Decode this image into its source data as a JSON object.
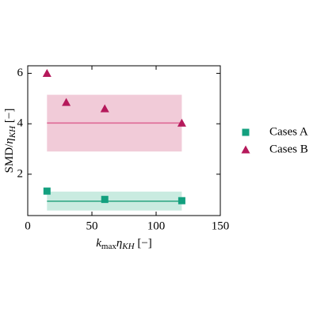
{
  "chart_data": {
    "type": "scatter",
    "xlabel": [
      {
        "t": "k",
        "i": true
      },
      {
        "t": "max",
        "sub": true
      },
      {
        "t": "η",
        "i": true
      },
      {
        "t": "KH",
        "sub": true,
        "i": true
      },
      {
        "t": " [−]"
      }
    ],
    "ylabel": [
      {
        "t": "SMD/"
      },
      {
        "t": "η",
        "i": true
      },
      {
        "t": "KH",
        "sub": true,
        "i": true
      },
      {
        "t": " [−]"
      }
    ],
    "xlim": [
      0,
      150
    ],
    "xticks": [
      0,
      50,
      100,
      150
    ],
    "ylim": [
      0.36,
      6.3
    ],
    "yticks": [
      2,
      4,
      6
    ],
    "legend": "right",
    "series": [
      {
        "name": "Cases A",
        "marker": "square",
        "color": "#13a07f",
        "line_color": "#3fae8e",
        "band_color": "#c9ebe0",
        "x": [
          15,
          60,
          120
        ],
        "values": [
          1.33,
          1.0,
          0.95
        ],
        "mean": 0.93,
        "band": [
          0.56,
          1.31
        ],
        "span": [
          15,
          120
        ]
      },
      {
        "name": "Cases B",
        "marker": "triangle",
        "color": "#b5195b",
        "line_color": "#e0709a",
        "band_color": "#f1cbd8",
        "x": [
          15,
          30,
          60,
          120
        ],
        "values": [
          6.0,
          4.85,
          4.6,
          4.03
        ],
        "mean": 4.03,
        "band": [
          2.9,
          5.15
        ],
        "span": [
          15,
          120
        ]
      }
    ]
  }
}
